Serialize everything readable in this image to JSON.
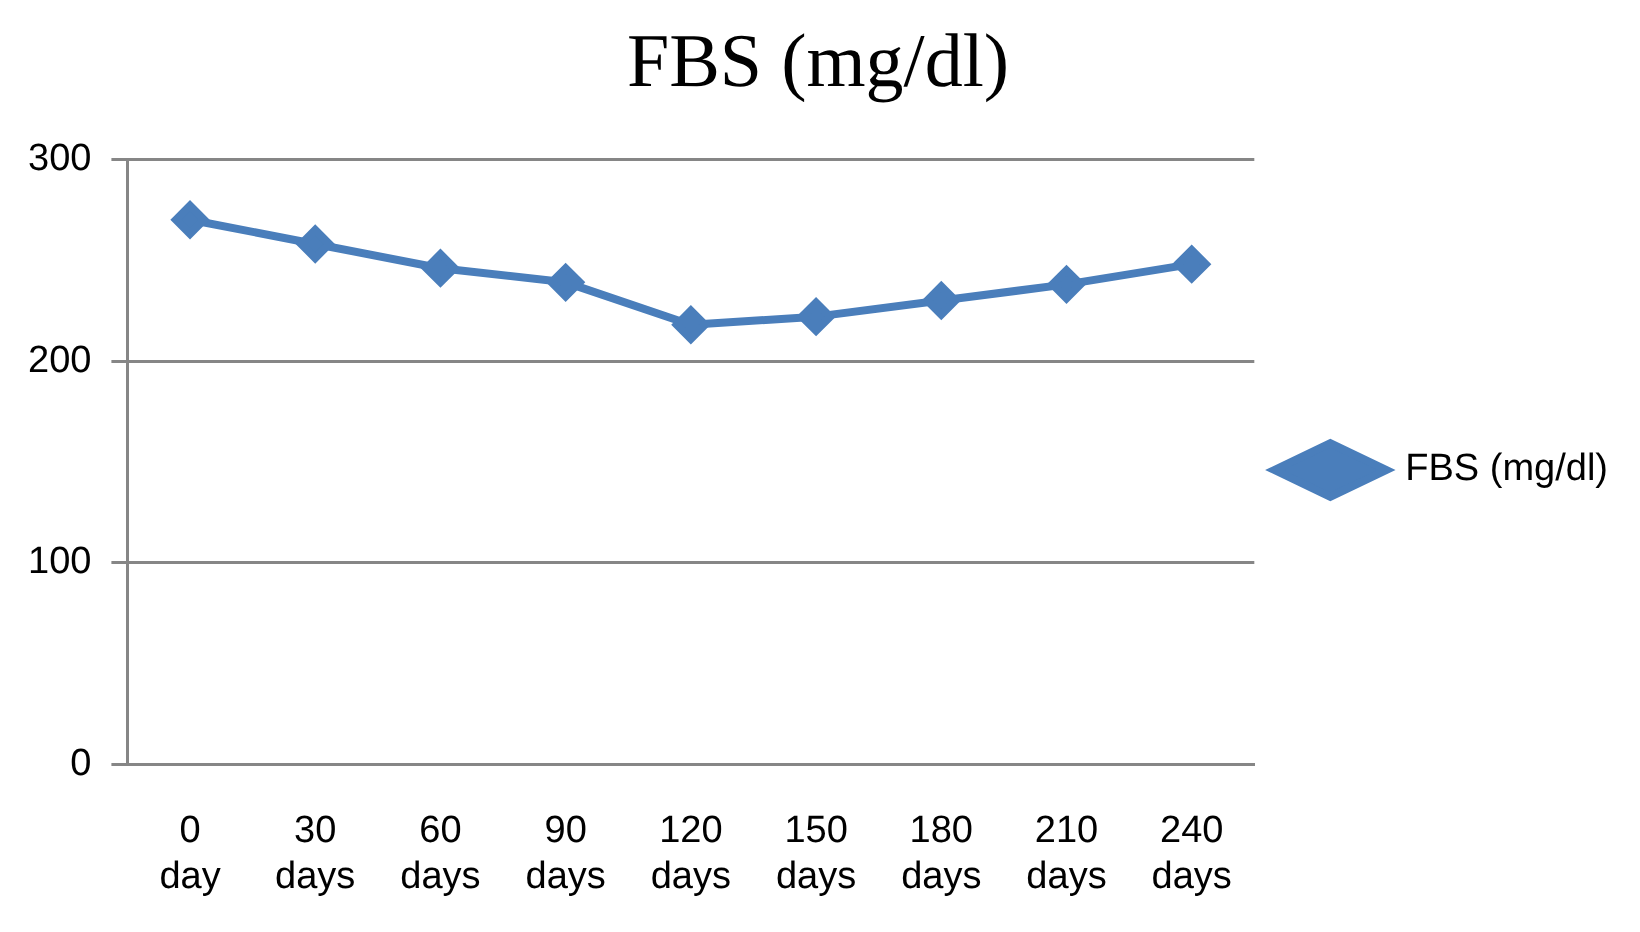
{
  "chart_data": {
    "type": "line",
    "title": "FBS (mg/dl)",
    "categories": [
      "0 day",
      "30 days",
      "60 days",
      "90 days",
      "120 days",
      "150 days",
      "180 days",
      "210 days",
      "240 days"
    ],
    "series": [
      {
        "name": "FBS (mg/dl)",
        "color": "#4a7ebb",
        "values": [
          270,
          258,
          246,
          239,
          218,
          222,
          230,
          238,
          248
        ]
      }
    ],
    "ylim": [
      0,
      300
    ],
    "yticks": [
      0,
      100,
      200,
      300
    ],
    "grid": "y",
    "legend": "right",
    "marker": "diamond",
    "line_style": "solid"
  }
}
